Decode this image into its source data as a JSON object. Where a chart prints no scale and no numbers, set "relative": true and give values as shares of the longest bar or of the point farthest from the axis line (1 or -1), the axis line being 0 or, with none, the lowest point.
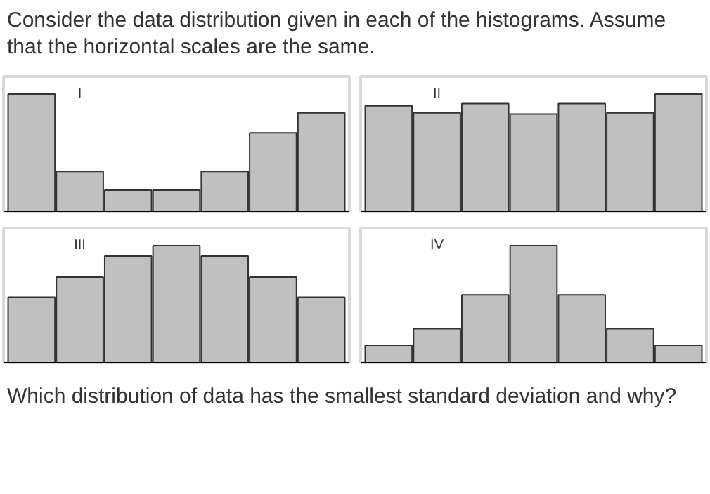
{
  "chart_data": [
    {
      "type": "bar",
      "title": "I",
      "relative": true,
      "annotations": [
        "Consider the data distribution given in each of the histograms. Assume",
        "that the horizontal scales are the same."
      ],
      "categories": [
        null,
        null,
        null,
        null,
        null,
        null,
        null
      ],
      "values": [
        1,
        0.34,
        0.18,
        0.18,
        0.34,
        0.67,
        0.84
      ],
      "color": "#c0c0c0"
    },
    {
      "type": "bar",
      "title": "II",
      "relative": true,
      "categories": [
        null,
        null,
        null,
        null,
        null,
        null,
        null
      ],
      "values": [
        0.9,
        0.84,
        0.92,
        0.83,
        0.92,
        0.84,
        1
      ],
      "color": "#c0c0c0"
    },
    {
      "type": "bar",
      "title": "III",
      "relative": true,
      "categories": [
        null,
        null,
        null,
        null,
        null,
        null,
        null
      ],
      "values": [
        0.56,
        0.73,
        0.91,
        1,
        0.91,
        0.73,
        0.56
      ],
      "color": "#c0c0c0"
    },
    {
      "type": "bar",
      "title": "IV",
      "relative": true,
      "annotations": [
        "Which distribution of data has the smallest standard deviation and why?"
      ],
      "categories": [
        null,
        null,
        null,
        null,
        null,
        null,
        null
      ],
      "values": [
        0.15,
        0.29,
        0.58,
        1,
        0.58,
        0.29,
        0.15
      ],
      "color": "#c0c0c0"
    }
  ]
}
